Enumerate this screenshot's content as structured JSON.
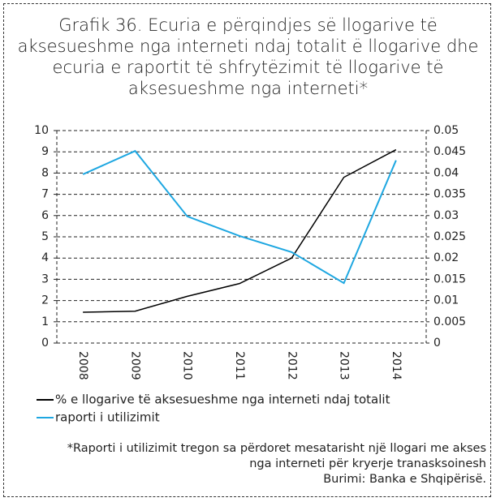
{
  "chart_data": {
    "type": "line",
    "title": "Grafik 36. Ecuria e përqindjes së llogarive të aksesueshme nga interneti ndaj totalit ë llogarive dhe ecuria e raportit të shfrytëzimit të llogarive të aksesueshme nga interneti*",
    "categories": [
      "2008",
      "2009",
      "2010",
      "2011",
      "2012",
      "2013",
      "2014"
    ],
    "series": [
      {
        "name": "% e llogarive të aksesueshme nga interneti ndaj totalit",
        "color": "#000000",
        "values": [
          1.45,
          1.5,
          2.2,
          2.8,
          4.0,
          7.8,
          9.1
        ]
      },
      {
        "name": "raporti i utilizimit",
        "color": "#1ea7e1",
        "axis": "y2",
        "values": [
          0.0397,
          0.0452,
          0.0298,
          0.0252,
          0.0214,
          0.0141,
          0.043
        ]
      }
    ],
    "ylim": [
      0,
      10
    ],
    "yticks": [
      0,
      1,
      2,
      3,
      4,
      5,
      6,
      7,
      8,
      9,
      10
    ],
    "y2lim": [
      0,
      0.05
    ],
    "y2ticks": [
      0,
      0.005,
      0.01,
      0.015,
      0.02,
      0.025,
      0.03,
      0.035,
      0.04,
      0.045,
      0.05
    ],
    "grid": true,
    "note": "*Raporti i utilizimit tregon sa përdoret mesatarisht një llogari me akses nga interneti për kryerje tranasksoinesh",
    "source": "Burimi: Banka e Shqipërisë."
  }
}
